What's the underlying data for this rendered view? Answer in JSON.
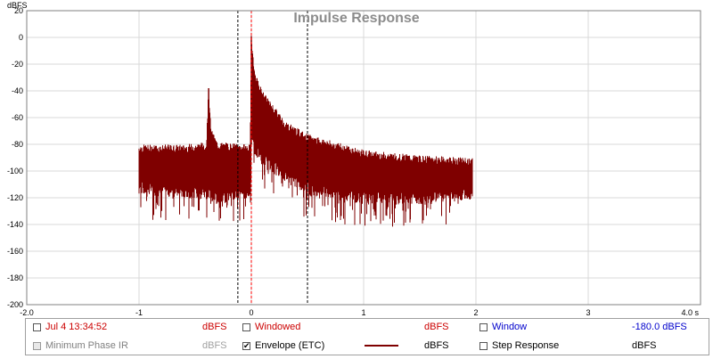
{
  "chart_data": {
    "type": "line",
    "title": "Impulse Response",
    "ylabel": "dBFS",
    "x_unit_label": "4.0 s",
    "xlim": [
      -2.0,
      4.0
    ],
    "ylim": [
      -200,
      20
    ],
    "x_ticks": [
      "-2.0",
      "-1",
      "0",
      "1",
      "2",
      "3",
      "4.0 s"
    ],
    "x_tick_values": [
      -2,
      -1,
      0,
      1,
      2,
      3,
      4
    ],
    "y_ticks": [
      "20",
      "0",
      "-20",
      "-40",
      "-60",
      "-80",
      "-100",
      "-120",
      "-140",
      "-160",
      "-180",
      "-200"
    ],
    "y_tick_values": [
      20,
      0,
      -20,
      -40,
      -60,
      -80,
      -100,
      -120,
      -140,
      -160,
      -180,
      -200
    ],
    "grid": true,
    "series": [
      {
        "name": "Jul 4 13:34:52",
        "color": "#7f0000",
        "x": [
          -1.0,
          -0.6,
          -0.4,
          -0.38,
          -0.36,
          -0.3,
          -0.01,
          0.0,
          0.03,
          0.1,
          0.3,
          0.5,
          1.0,
          1.5,
          1.97
        ],
        "y_top": [
          -82,
          -82,
          -80,
          -38,
          -70,
          -80,
          -82,
          1,
          -27,
          -42,
          -64,
          -74,
          -86,
          -90,
          -92
        ],
        "y_bottom": [
          -118,
          -120,
          -122,
          -118,
          -125,
          -125,
          -120,
          -75,
          -88,
          -96,
          -108,
          -118,
          -125,
          -125,
          -122
        ]
      }
    ],
    "markers": [
      {
        "x": -0.12,
        "style": "dashed",
        "color": "#000000"
      },
      {
        "x": 0.0,
        "style": "dashed",
        "color": "#ff0000"
      },
      {
        "x": 0.5,
        "style": "dashed",
        "color": "#000000"
      }
    ]
  },
  "legend": {
    "row1": [
      {
        "label": "Jul 4 13:34:52",
        "unit": "dBFS",
        "checked": false,
        "color": "#cc0000",
        "unit_color": "#cc0000"
      },
      {
        "label": "Windowed",
        "unit": "dBFS",
        "checked": false,
        "color": "#cc0000",
        "unit_color": "#cc0000"
      },
      {
        "label": "Window",
        "unit": "-180.0 dBFS",
        "checked": false,
        "color": "#0000cc",
        "unit_color": "#0000cc"
      }
    ],
    "row2": [
      {
        "label": "Minimum Phase IR",
        "unit": "dBFS",
        "checked": false,
        "disabled": true,
        "color": "#808080",
        "unit_color": "#a0a0a0"
      },
      {
        "label": "Envelope (ETC)",
        "unit": "dBFS",
        "checked": true,
        "color": "#000000",
        "unit_color": "#000000",
        "swatch": "#7f0000"
      },
      {
        "label": "Step Response",
        "unit": "dBFS",
        "checked": false,
        "color": "#000000",
        "unit_color": "#000000"
      }
    ],
    "check_mark": "✔"
  }
}
